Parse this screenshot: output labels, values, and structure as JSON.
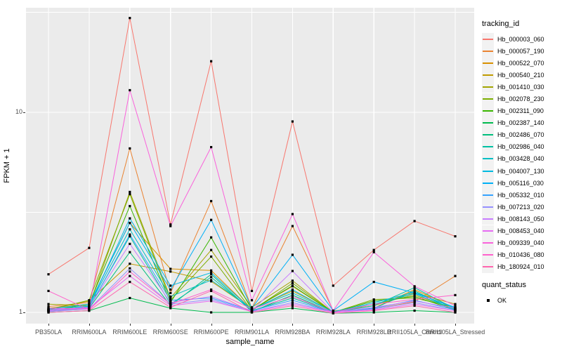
{
  "figure": {
    "y_axis_title": "FPKM + 1",
    "x_axis_title": "sample_name",
    "tracking_legend_title": "tracking_id",
    "quant_legend_title": "quant_status",
    "quant_legend_item": "OK"
  },
  "colors": {
    "panel_background": "#EBEBEB",
    "grid": "#FFFFFF",
    "tick_label": "#4D4D4D",
    "axis_title": "#000000",
    "point_marker": "#000000",
    "legend_key_background": "#F2F2F2"
  },
  "chart_data": {
    "type": "line",
    "title": "",
    "xlabel": "sample_name",
    "ylabel": "FPKM + 1",
    "y_scale": "log10",
    "grid": "on",
    "legend_position": "right",
    "point_marker": "black square (quant_status OK)",
    "y_major_ticks": [
      {
        "label": "1",
        "value": 1
      },
      {
        "label": "10",
        "value": 10
      }
    ],
    "y_minor_tick_values": [
      3.162,
      31.623
    ],
    "ylim": [
      0.88,
      33.3
    ],
    "categories": [
      "PB350LA",
      "RRIM600LA",
      "RRIM600LE",
      "RRIM600SE",
      "RRIM600PE",
      "RRIM901LA",
      "RRIM928BA",
      "RRIM928LA",
      "RRIM928LB",
      "RRII105LA_Control",
      "RRII105LA_Stressed"
    ],
    "series": [
      {
        "name": "Hb_000003_060",
        "color": "#F8766D",
        "values": [
          1.55,
          2.1,
          29.6,
          2.75,
          18.0,
          1.28,
          9.0,
          1.36,
          2.05,
          2.86,
          2.4
        ]
      },
      {
        "name": "Hb_000057_190",
        "color": "#EA8331",
        "values": [
          1.07,
          1.12,
          6.6,
          1.25,
          3.6,
          1.05,
          2.7,
          1.02,
          1.04,
          1.13,
          1.52
        ]
      },
      {
        "name": "Hb_000522_070",
        "color": "#D89000",
        "values": [
          1.05,
          1.1,
          2.8,
          1.65,
          1.62,
          1.03,
          1.35,
          1.0,
          1.05,
          1.3,
          1.05
        ]
      },
      {
        "name": "Hb_000540_210",
        "color": "#C09B00",
        "values": [
          1.04,
          1.14,
          1.75,
          1.6,
          1.43,
          1.04,
          1.28,
          1.01,
          1.08,
          1.25,
          1.1
        ]
      },
      {
        "name": "Hb_001410_030",
        "color": "#A3A500",
        "values": [
          1.1,
          1.08,
          4.0,
          1.18,
          2.05,
          1.06,
          1.44,
          1.0,
          1.1,
          1.22,
          1.04
        ]
      },
      {
        "name": "Hb_002078_230",
        "color": "#7CAE00",
        "values": [
          1.03,
          1.15,
          3.9,
          1.15,
          1.9,
          1.02,
          1.4,
          1.0,
          1.16,
          1.18,
          1.06
        ]
      },
      {
        "name": "Hb_002311_090",
        "color": "#39B600",
        "values": [
          1.02,
          1.1,
          3.4,
          1.12,
          2.37,
          1.03,
          1.36,
          1.0,
          1.14,
          1.2,
          1.03
        ]
      },
      {
        "name": "Hb_002387_140",
        "color": "#00BB4E",
        "values": [
          1.0,
          1.02,
          1.18,
          1.05,
          1.0,
          1.0,
          1.05,
          0.99,
          1.0,
          1.02,
          1.0
        ]
      },
      {
        "name": "Hb_002486_070",
        "color": "#00BF7D",
        "values": [
          1.01,
          1.05,
          2.0,
          1.08,
          1.55,
          1.01,
          1.22,
          1.0,
          1.05,
          1.28,
          1.02
        ]
      },
      {
        "name": "Hb_002986_040",
        "color": "#00C1A3",
        "values": [
          1.02,
          1.06,
          2.4,
          1.1,
          1.5,
          1.02,
          1.18,
          1.0,
          1.08,
          1.33,
          1.04
        ]
      },
      {
        "name": "Hb_003428_040",
        "color": "#00BFC4",
        "values": [
          1.03,
          1.08,
          2.6,
          1.2,
          1.45,
          1.04,
          1.25,
          1.01,
          1.1,
          1.24,
          1.03
        ]
      },
      {
        "name": "Hb_004007_130",
        "color": "#00BAE0",
        "values": [
          1.02,
          1.07,
          2.95,
          1.36,
          1.58,
          1.03,
          1.3,
          1.0,
          1.12,
          1.26,
          1.05
        ]
      },
      {
        "name": "Hb_005116_030",
        "color": "#00B0F6",
        "values": [
          1.04,
          1.1,
          2.8,
          1.3,
          2.9,
          1.05,
          1.94,
          1.02,
          1.42,
          1.25,
          1.06
        ]
      },
      {
        "name": "Hb_005332_010",
        "color": "#35A2FF",
        "values": [
          1.02,
          1.05,
          2.45,
          1.15,
          1.18,
          1.02,
          1.15,
          1.0,
          1.05,
          1.15,
          1.03
        ]
      },
      {
        "name": "Hb_007213_020",
        "color": "#9590FF",
        "values": [
          1.01,
          1.04,
          1.66,
          1.1,
          1.16,
          1.01,
          1.12,
          1.0,
          1.04,
          1.12,
          1.02
        ]
      },
      {
        "name": "Hb_008143_050",
        "color": "#C77CFF",
        "values": [
          1.03,
          1.06,
          2.2,
          1.12,
          1.2,
          1.02,
          1.61,
          1.0,
          1.06,
          1.14,
          1.05
        ]
      },
      {
        "name": "Hb_008453_040",
        "color": "#E76BF3",
        "values": [
          1.02,
          1.05,
          1.52,
          1.08,
          1.14,
          1.01,
          1.1,
          1.0,
          1.03,
          1.1,
          1.02
        ]
      },
      {
        "name": "Hb_009339_040",
        "color": "#FA62DB",
        "values": [
          1.05,
          1.04,
          12.9,
          2.7,
          6.7,
          1.15,
          3.1,
          1.02,
          2.0,
          1.35,
          1.08
        ]
      },
      {
        "name": "Hb_010436_080",
        "color": "#FF61CC",
        "values": [
          1.28,
          1.03,
          1.6,
          1.1,
          1.3,
          1.04,
          1.2,
          1.0,
          1.1,
          1.16,
          1.22
        ]
      },
      {
        "name": "Hb_180924_010",
        "color": "#FF65AE",
        "values": [
          1.0,
          1.02,
          1.42,
          1.06,
          1.28,
          1.0,
          1.08,
          0.99,
          1.02,
          1.08,
          1.0
        ]
      }
    ]
  }
}
